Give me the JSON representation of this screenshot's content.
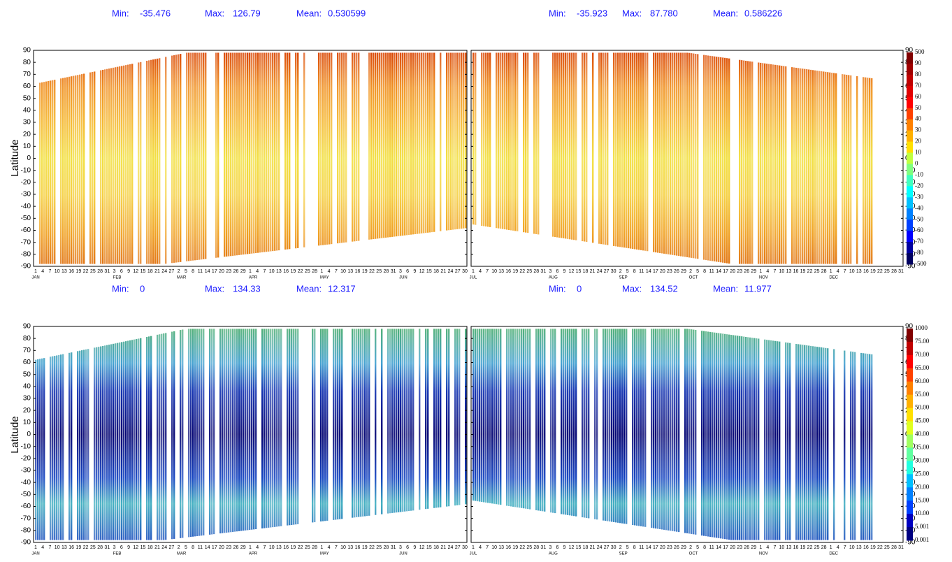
{
  "stat_labels": {
    "min": "Min:",
    "max": "Max:",
    "mean": "Mean:"
  },
  "y_label": "Latitude",
  "yticks": [
    90,
    80,
    70,
    60,
    50,
    40,
    30,
    20,
    10,
    0,
    -10,
    -20,
    -30,
    -40,
    -50,
    -60,
    -70,
    -80,
    -90
  ],
  "halves": [
    {
      "months": [
        "JAN",
        "FEB",
        "MAR",
        "APR",
        "MAY",
        "JUN"
      ],
      "days": [
        1,
        4,
        7,
        10,
        13,
        16,
        19,
        22,
        25,
        28,
        31,
        3,
        6,
        9,
        12,
        15,
        18,
        21,
        24,
        27,
        2,
        5,
        8,
        11,
        14,
        17,
        20,
        23,
        26,
        29,
        1,
        4,
        7,
        10,
        13,
        16,
        19,
        22,
        25,
        28,
        1,
        4,
        7,
        10,
        13,
        16,
        19,
        22,
        25,
        28,
        31,
        3,
        6,
        9,
        12,
        15,
        18,
        21,
        24,
        27,
        30
      ],
      "highlighted": [
        9,
        16,
        23,
        30,
        37,
        44,
        51,
        58
      ]
    },
    {
      "months": [
        "JUL",
        "AUG",
        "SEP",
        "OCT",
        "NOV",
        "DEC"
      ],
      "days": [
        1,
        4,
        7,
        10,
        13,
        16,
        19,
        22,
        25,
        28,
        31,
        3,
        6,
        9,
        12,
        15,
        18,
        21,
        24,
        27,
        30,
        2,
        5,
        8,
        11,
        14,
        17,
        20,
        23,
        26,
        29,
        2,
        5,
        8,
        11,
        14,
        17,
        20,
        23,
        26,
        29,
        1,
        4,
        7,
        10,
        13,
        16,
        19,
        22,
        25,
        28,
        1,
        4,
        7,
        10,
        13,
        16,
        19,
        22,
        25,
        28,
        31
      ],
      "highlighted": [
        7,
        14,
        21,
        28,
        35,
        42,
        49,
        56
      ]
    }
  ],
  "rows": [
    {
      "stats": [
        {
          "min": "-35.476",
          "max": "126.79",
          "mean": "0.530599"
        },
        {
          "min": "-35.923",
          "max": "87.780",
          "mean": "0.586226"
        }
      ],
      "colorbar": {
        "labels": [
          "500",
          "90",
          "80",
          "70",
          "60",
          "50",
          "40",
          "30",
          "20",
          "10",
          "0",
          "-10",
          "-20",
          "-30",
          "-40",
          "-50",
          "-60",
          "-70",
          "-80",
          "-500"
        ],
        "colors": [
          "#800000",
          "#a00000",
          "#c00000",
          "#e00000",
          "#ff0000",
          "#ff4000",
          "#ff8000",
          "#ffb000",
          "#ffe000",
          "#c0ff40",
          "#80ff80",
          "#40ffc0",
          "#00ffff",
          "#00c0ff",
          "#0080ff",
          "#0040ff",
          "#0000ff",
          "#0000a0",
          "#000060"
        ]
      }
    },
    {
      "stats": [
        {
          "min": "0",
          "max": "134.33",
          "mean": "12.317"
        },
        {
          "min": "0",
          "max": "134.52",
          "mean": "11.977"
        }
      ],
      "colorbar": {
        "labels": [
          "1000",
          "75.00",
          "70.00",
          "65.00",
          "60.00",
          "55.00",
          "50.00",
          "45.00",
          "40.00",
          "35.00",
          "30.00",
          "25.00",
          "20.00",
          "15.00",
          "10.00",
          "5.001",
          "0.001"
        ],
        "colors": [
          "#800000",
          "#c00000",
          "#ff0000",
          "#ff4000",
          "#ff8000",
          "#ffb000",
          "#ffe000",
          "#e0ff20",
          "#a0ff60",
          "#60ffa0",
          "#20ffe0",
          "#00c0ff",
          "#0080ff",
          "#0040ff",
          "#0000c0",
          "#000080"
        ]
      }
    }
  ]
}
